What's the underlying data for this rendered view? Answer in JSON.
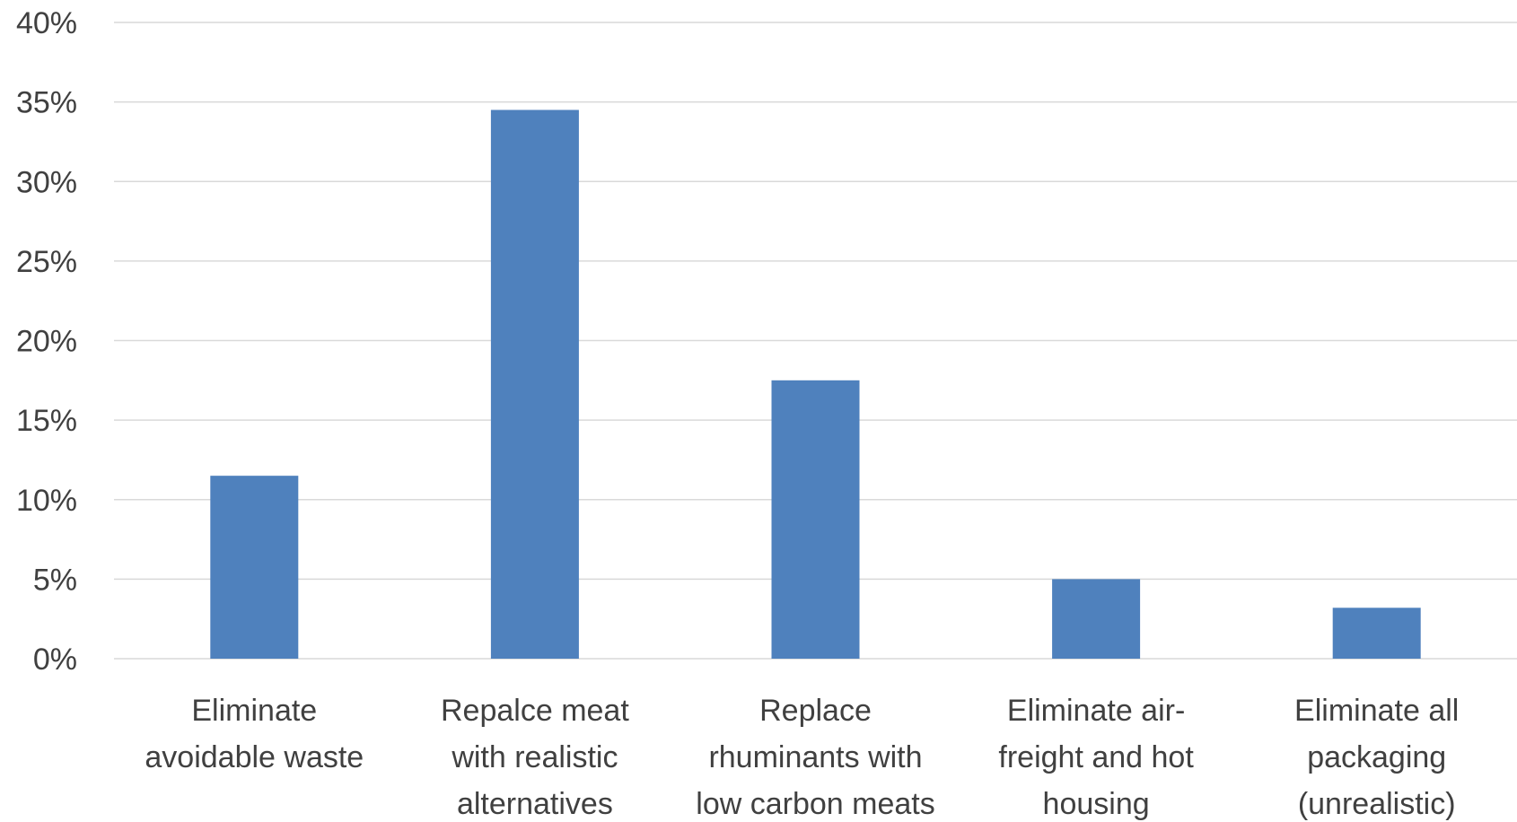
{
  "chart_data": {
    "type": "bar",
    "title": "",
    "xlabel": "",
    "ylabel": "",
    "categories": [
      [
        "Eliminate",
        "avoidable waste"
      ],
      [
        "Repalce meat",
        "with realistic",
        "alternatives"
      ],
      [
        "Replace",
        "rhuminants with",
        "low carbon meats"
      ],
      [
        "Eliminate air-",
        "freight and hot",
        "housing"
      ],
      [
        "Eliminate all",
        "packaging",
        "(unrealistic)"
      ]
    ],
    "values": [
      11.5,
      34.5,
      17.5,
      5.0,
      3.2
    ],
    "ylim": [
      0,
      40
    ],
    "y_ticks": [
      "0%",
      "5%",
      "10%",
      "15%",
      "20%",
      "25%",
      "30%",
      "35%",
      "40%"
    ],
    "y_tick_values": [
      0,
      5,
      10,
      15,
      20,
      25,
      30,
      35,
      40
    ],
    "grid": true,
    "legend": "none",
    "bar_color": "#4F81BD",
    "grid_color": "#D9D9D9"
  }
}
